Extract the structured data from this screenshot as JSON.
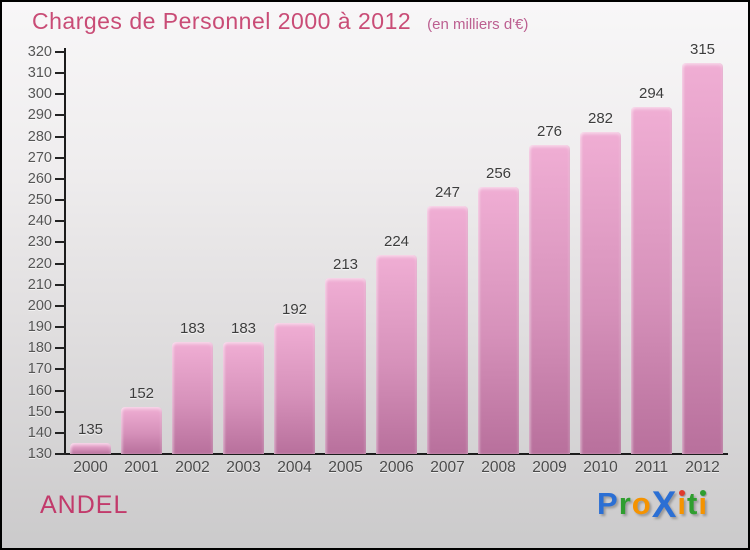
{
  "header": {
    "title": "Charges de Personnel 2000 à 2012",
    "subtitle": "(en milliers d'€)"
  },
  "chart_data": {
    "type": "bar",
    "title": "Charges de Personnel 2000 à 2012",
    "subtitle": "(en milliers d'€)",
    "categories": [
      "2000",
      "2001",
      "2002",
      "2003",
      "2004",
      "2005",
      "2006",
      "2007",
      "2008",
      "2009",
      "2010",
      "2011",
      "2012"
    ],
    "values": [
      135,
      152,
      183,
      183,
      192,
      213,
      224,
      247,
      256,
      276,
      282,
      294,
      315
    ],
    "xlabel": "",
    "ylabel": "",
    "ylim": [
      130,
      320
    ],
    "y_tick_step": 10,
    "y_ticks": [
      320,
      310,
      300,
      290,
      280,
      270,
      260,
      250,
      240,
      230,
      220,
      210,
      200,
      190,
      180,
      170,
      160,
      150,
      140,
      130
    ],
    "grid": false,
    "legend": false,
    "bar_labels_shown": true
  },
  "footer": {
    "org_name": "ANDEL",
    "logo": {
      "text": "Proxiti",
      "letters": [
        {
          "ch": "P",
          "color": "#2b6fd4"
        },
        {
          "ch": "r",
          "color": "#2f9e2f"
        },
        {
          "ch": "o",
          "color": "#f59300"
        },
        {
          "ch": "X",
          "color": "#2b6fd4",
          "big": true
        },
        {
          "ch": "i",
          "color": "#f59300",
          "dot": "#e03a2c"
        },
        {
          "ch": "t",
          "color": "#2f9e2f"
        },
        {
          "ch": "i",
          "color": "#f59300",
          "dot": "#2f9e2f"
        }
      ]
    }
  },
  "colors": {
    "title": "#c94c76",
    "subtitle": "#bc5f90",
    "org_name": "#c23a6b",
    "axis": "#1c1c1c",
    "bar_top": "#f0aed4",
    "bar_bottom": "#b8709c",
    "value_label": "#3d3d3d",
    "tick_label": "#555555",
    "background_top": "#f8f7f8",
    "background_bottom": "#cbcacb"
  }
}
